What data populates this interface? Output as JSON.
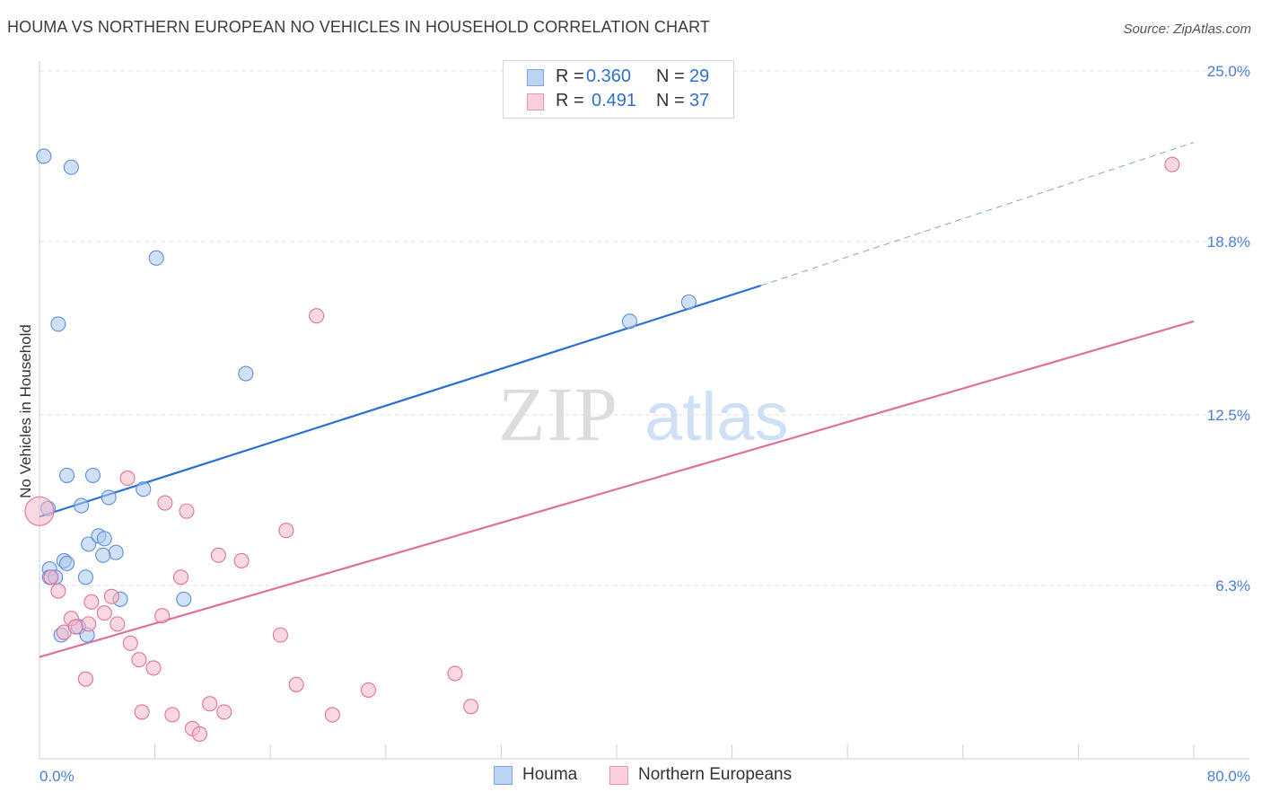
{
  "title": "HOUMA VS NORTHERN EUROPEAN NO VEHICLES IN HOUSEHOLD CORRELATION CHART",
  "source": "Source: ZipAtlas.com",
  "watermark": {
    "zip": "ZIP",
    "atlas": "atlas"
  },
  "legend": {
    "r_label": "R =",
    "n_label": "N =",
    "rows": [
      {
        "r": "0.360",
        "n": "29",
        "color": "#a9c7ef"
      },
      {
        "r": "0.491",
        "n": "37",
        "color": "#f5b8ca"
      }
    ]
  },
  "bottom_legend": [
    "Houma",
    "Northern Europeans"
  ],
  "chart_data": {
    "type": "scatter",
    "ylabel": "No Vehicles in Household",
    "xlim": [
      0,
      80
    ],
    "ylim": [
      0,
      25
    ],
    "x_tick_labels": [
      "0.0%",
      "80.0%"
    ],
    "y_ticks": [
      6.3,
      12.5,
      18.8,
      25.0
    ],
    "y_tick_labels": [
      "6.3%",
      "12.5%",
      "18.8%",
      "25.0%"
    ],
    "grid": true,
    "series": [
      {
        "name": "Houma",
        "color": "#5b8fdb",
        "fill": "#a9c7ef",
        "trend": {
          "x": [
            0,
            50
          ],
          "y": [
            8.8,
            17.2
          ],
          "dash_to": [
            80,
            22.4
          ]
        },
        "points": [
          [
            0.3,
            21.9
          ],
          [
            2.2,
            21.5
          ],
          [
            8.1,
            18.2
          ],
          [
            1.3,
            15.8
          ],
          [
            14.3,
            14.0
          ],
          [
            40.9,
            15.9
          ],
          [
            45.0,
            16.6
          ],
          [
            1.9,
            10.3
          ],
          [
            3.7,
            10.3
          ],
          [
            7.2,
            9.8
          ],
          [
            4.8,
            9.5
          ],
          [
            2.9,
            9.2
          ],
          [
            0.6,
            9.1
          ],
          [
            3.4,
            7.8
          ],
          [
            4.1,
            8.1
          ],
          [
            4.5,
            8.0
          ],
          [
            5.3,
            7.5
          ],
          [
            4.4,
            7.4
          ],
          [
            1.7,
            7.2
          ],
          [
            1.9,
            7.1
          ],
          [
            0.7,
            6.9
          ],
          [
            0.7,
            6.6
          ],
          [
            1.1,
            6.6
          ],
          [
            3.2,
            6.6
          ],
          [
            5.6,
            5.8
          ],
          [
            10.0,
            5.8
          ],
          [
            2.7,
            4.8
          ],
          [
            1.5,
            4.5
          ],
          [
            3.3,
            4.5
          ]
        ]
      },
      {
        "name": "Northern Europeans",
        "color": "#e0709a",
        "fill": "#f5b8ca",
        "trend": {
          "x": [
            0,
            80
          ],
          "y": [
            3.7,
            15.9
          ]
        },
        "points": [
          [
            78.5,
            21.6
          ],
          [
            19.2,
            16.1
          ],
          [
            6.1,
            10.2
          ],
          [
            8.7,
            9.3
          ],
          [
            10.2,
            9.0
          ],
          [
            0.0,
            9.0
          ],
          [
            17.1,
            8.3
          ],
          [
            12.4,
            7.4
          ],
          [
            14.0,
            7.2
          ],
          [
            9.8,
            6.6
          ],
          [
            0.8,
            6.6
          ],
          [
            1.3,
            6.1
          ],
          [
            3.6,
            5.7
          ],
          [
            5.0,
            5.9
          ],
          [
            4.5,
            5.3
          ],
          [
            2.2,
            5.1
          ],
          [
            8.5,
            5.2
          ],
          [
            3.4,
            4.9
          ],
          [
            5.4,
            4.9
          ],
          [
            1.7,
            4.6
          ],
          [
            2.5,
            4.8
          ],
          [
            16.7,
            4.5
          ],
          [
            6.3,
            4.2
          ],
          [
            6.9,
            3.6
          ],
          [
            7.9,
            3.3
          ],
          [
            3.2,
            2.9
          ],
          [
            28.8,
            3.1
          ],
          [
            17.8,
            2.7
          ],
          [
            22.8,
            2.5
          ],
          [
            11.8,
            2.0
          ],
          [
            29.9,
            1.9
          ],
          [
            7.1,
            1.7
          ],
          [
            9.2,
            1.6
          ],
          [
            12.8,
            1.7
          ],
          [
            20.3,
            1.6
          ],
          [
            10.6,
            1.1
          ],
          [
            11.1,
            0.9
          ]
        ]
      }
    ]
  }
}
